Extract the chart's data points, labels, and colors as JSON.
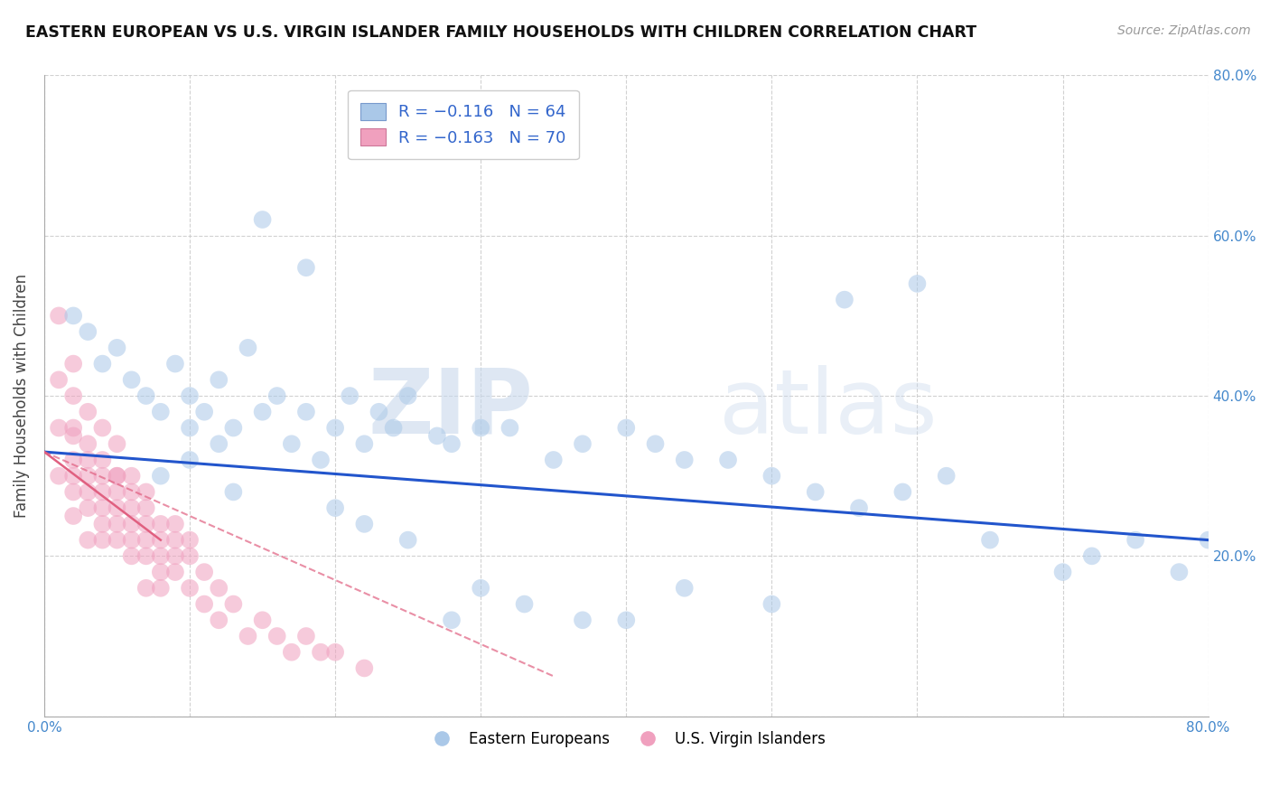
{
  "title": "EASTERN EUROPEAN VS U.S. VIRGIN ISLANDER FAMILY HOUSEHOLDS WITH CHILDREN CORRELATION CHART",
  "source": "Source: ZipAtlas.com",
  "ylabel": "Family Households with Children",
  "xlim": [
    0.0,
    0.8
  ],
  "ylim": [
    0.0,
    0.8
  ],
  "blue_scatter_x": [
    0.02,
    0.03,
    0.04,
    0.05,
    0.06,
    0.07,
    0.08,
    0.09,
    0.1,
    0.1,
    0.11,
    0.12,
    0.12,
    0.13,
    0.14,
    0.15,
    0.16,
    0.17,
    0.18,
    0.19,
    0.2,
    0.21,
    0.22,
    0.23,
    0.24,
    0.25,
    0.27,
    0.28,
    0.3,
    0.32,
    0.35,
    0.37,
    0.4,
    0.42,
    0.44,
    0.47,
    0.5,
    0.53,
    0.56,
    0.59,
    0.62,
    0.65,
    0.7,
    0.72,
    0.75,
    0.78,
    0.8,
    0.08,
    0.1,
    0.13,
    0.15,
    0.18,
    0.2,
    0.22,
    0.25,
    0.28,
    0.3,
    0.33,
    0.37,
    0.4,
    0.44,
    0.5,
    0.55,
    0.6
  ],
  "blue_scatter_y": [
    0.5,
    0.48,
    0.44,
    0.46,
    0.42,
    0.4,
    0.38,
    0.44,
    0.36,
    0.4,
    0.38,
    0.34,
    0.42,
    0.36,
    0.46,
    0.38,
    0.4,
    0.34,
    0.38,
    0.32,
    0.36,
    0.4,
    0.34,
    0.38,
    0.36,
    0.4,
    0.35,
    0.34,
    0.36,
    0.36,
    0.32,
    0.34,
    0.36,
    0.34,
    0.32,
    0.32,
    0.3,
    0.28,
    0.26,
    0.28,
    0.3,
    0.22,
    0.18,
    0.2,
    0.22,
    0.18,
    0.22,
    0.3,
    0.32,
    0.28,
    0.62,
    0.56,
    0.26,
    0.24,
    0.22,
    0.12,
    0.16,
    0.14,
    0.12,
    0.12,
    0.16,
    0.14,
    0.52,
    0.54
  ],
  "pink_scatter_x": [
    0.01,
    0.01,
    0.01,
    0.01,
    0.02,
    0.02,
    0.02,
    0.02,
    0.02,
    0.02,
    0.02,
    0.02,
    0.03,
    0.03,
    0.03,
    0.03,
    0.03,
    0.03,
    0.03,
    0.04,
    0.04,
    0.04,
    0.04,
    0.04,
    0.04,
    0.04,
    0.05,
    0.05,
    0.05,
    0.05,
    0.05,
    0.05,
    0.05,
    0.06,
    0.06,
    0.06,
    0.06,
    0.06,
    0.06,
    0.07,
    0.07,
    0.07,
    0.07,
    0.07,
    0.07,
    0.08,
    0.08,
    0.08,
    0.08,
    0.08,
    0.09,
    0.09,
    0.09,
    0.09,
    0.1,
    0.1,
    0.1,
    0.11,
    0.11,
    0.12,
    0.12,
    0.13,
    0.14,
    0.15,
    0.16,
    0.17,
    0.18,
    0.19,
    0.2,
    0.22
  ],
  "pink_scatter_y": [
    0.5,
    0.42,
    0.36,
    0.3,
    0.44,
    0.4,
    0.36,
    0.32,
    0.28,
    0.25,
    0.3,
    0.35,
    0.38,
    0.34,
    0.3,
    0.26,
    0.22,
    0.28,
    0.32,
    0.36,
    0.3,
    0.26,
    0.22,
    0.28,
    0.24,
    0.32,
    0.34,
    0.3,
    0.26,
    0.22,
    0.28,
    0.24,
    0.3,
    0.26,
    0.22,
    0.28,
    0.24,
    0.2,
    0.3,
    0.26,
    0.22,
    0.28,
    0.24,
    0.2,
    0.16,
    0.24,
    0.2,
    0.22,
    0.18,
    0.16,
    0.22,
    0.18,
    0.24,
    0.2,
    0.2,
    0.16,
    0.22,
    0.18,
    0.14,
    0.16,
    0.12,
    0.14,
    0.1,
    0.12,
    0.1,
    0.08,
    0.1,
    0.08,
    0.08,
    0.06
  ],
  "blue_line_x": [
    0.0,
    0.8
  ],
  "blue_line_y": [
    0.33,
    0.22
  ],
  "pink_solid_line_x": [
    0.0,
    0.08
  ],
  "pink_solid_line_y": [
    0.33,
    0.22
  ],
  "pink_dashed_line_x": [
    0.0,
    0.35
  ],
  "pink_dashed_line_y": [
    0.33,
    0.05
  ],
  "blue_color": "#aac8e8",
  "pink_color": "#f0a0be",
  "blue_line_color": "#2255cc",
  "pink_line_color": "#e06080",
  "watermark_zip": "ZIP",
  "watermark_atlas": "atlas",
  "background_color": "#ffffff",
  "grid_color": "#cccccc"
}
